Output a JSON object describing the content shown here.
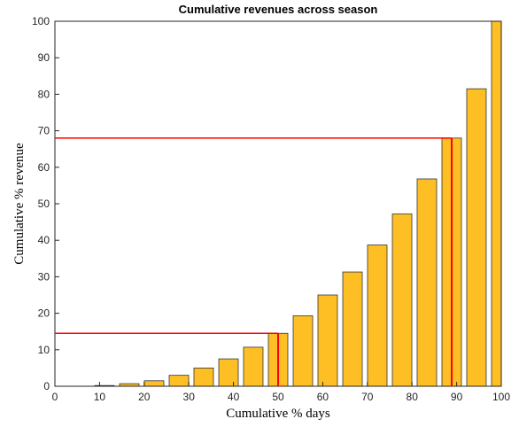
{
  "chart_data": {
    "type": "bar",
    "title": "Cumulative revenues across season",
    "xlabel": "Cumulative % days",
    "ylabel": "Cumulative % revenue",
    "x": [
      5.56,
      11.11,
      16.67,
      22.22,
      27.78,
      33.33,
      38.89,
      44.44,
      50,
      55.56,
      61.11,
      66.67,
      72.22,
      77.78,
      83.33,
      88.89,
      94.44,
      100
    ],
    "values": [
      0,
      0.2,
      0.7,
      1.5,
      3,
      5,
      7.5,
      10.7,
      14.5,
      19.3,
      25,
      31.3,
      38.7,
      47.2,
      56.8,
      68,
      81.5,
      100
    ],
    "color": "#fdbf24",
    "reference_lines": [
      {
        "x": 50,
        "y": 14.5
      },
      {
        "x": 88.89,
        "y": 68
      }
    ],
    "reference_color": "#ff0000",
    "xlim": [
      0,
      100
    ],
    "xticks": [
      0,
      10,
      20,
      30,
      40,
      50,
      60,
      70,
      80,
      90,
      100
    ],
    "ylim": [
      0,
      100
    ],
    "yticks": [
      0,
      10,
      20,
      30,
      40,
      50,
      60,
      70,
      80,
      90,
      100
    ],
    "grid": false
  }
}
